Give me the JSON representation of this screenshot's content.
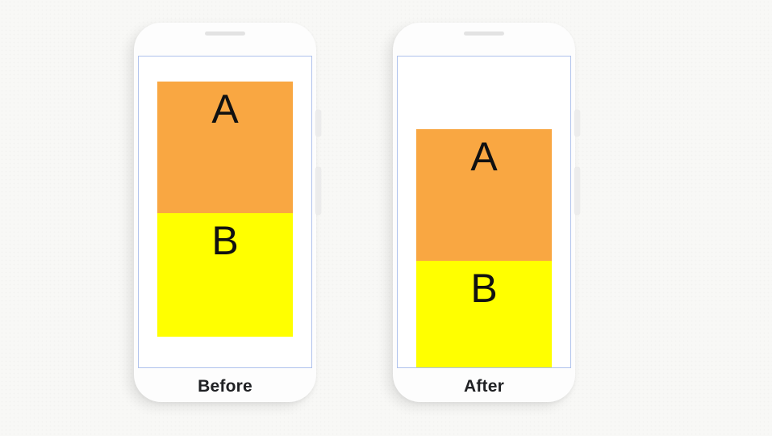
{
  "panels": [
    {
      "caption": "Before",
      "blocks": [
        {
          "label": "A"
        },
        {
          "label": "B"
        }
      ]
    },
    {
      "caption": "After",
      "blocks": [
        {
          "label": "A"
        },
        {
          "label": "B"
        }
      ]
    }
  ],
  "colors": {
    "block_a": "#F9A742",
    "block_b": "#FFFF00",
    "screen_outline": "#AFC2EC",
    "phone_body": "#FDFDFD",
    "background": "#F8F8F6",
    "block_letter": "#111111",
    "caption_text": "#202124"
  }
}
